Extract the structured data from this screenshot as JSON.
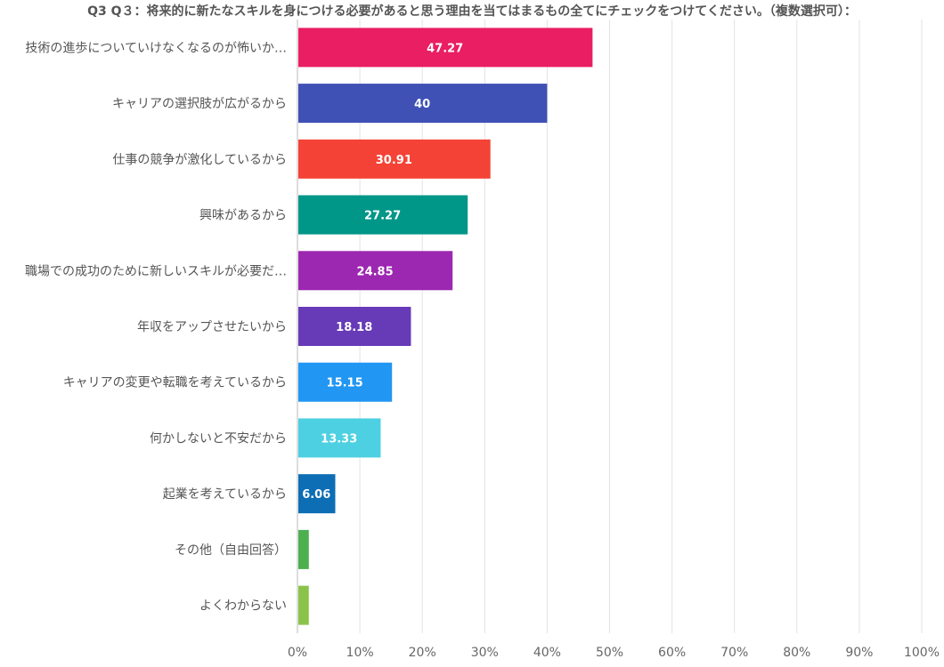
{
  "chart_data": {
    "type": "bar",
    "orientation": "horizontal",
    "title": "Q3 Q３：将来的に新たなスキルを身につける必要があると思う理由を当てはまるもの全てにチェックをつけてください。（複数選択可）：",
    "categories": [
      "技術の進歩についていけなくなるのが怖いか…",
      "キャリアの選択肢が広がるから",
      "仕事の競争が激化しているから",
      "興味があるから",
      "職場での成功のために新しいスキルが必要だ…",
      "年収をアップさせたいから",
      "キャリアの変更や転職を考えているから",
      "何かしないと不安だから",
      "起業を考えているから",
      "その他（自由回答）",
      "よくわからない"
    ],
    "values": [
      47.27,
      40,
      30.91,
      27.27,
      24.85,
      18.18,
      15.15,
      13.33,
      6.06,
      1.82,
      1.82
    ],
    "data_labels": [
      "47.27",
      "40",
      "30.91",
      "27.27",
      "24.85",
      "18.18",
      "15.15",
      "13.33",
      "6.06",
      "",
      ""
    ],
    "colors": [
      "#e91e63",
      "#3f51b5",
      "#f44336",
      "#009688",
      "#9c27b0",
      "#673ab7",
      "#2196f3",
      "#4dd0e1",
      "#0d6eb5",
      "#4caf50",
      "#8bc34a"
    ],
    "xlim": [
      0,
      100
    ],
    "xticks": [
      "0%",
      "10%",
      "20%",
      "30%",
      "40%",
      "50%",
      "60%",
      "70%",
      "80%",
      "90%",
      "100%"
    ],
    "grid": true,
    "xlabel": "",
    "ylabel": ""
  }
}
